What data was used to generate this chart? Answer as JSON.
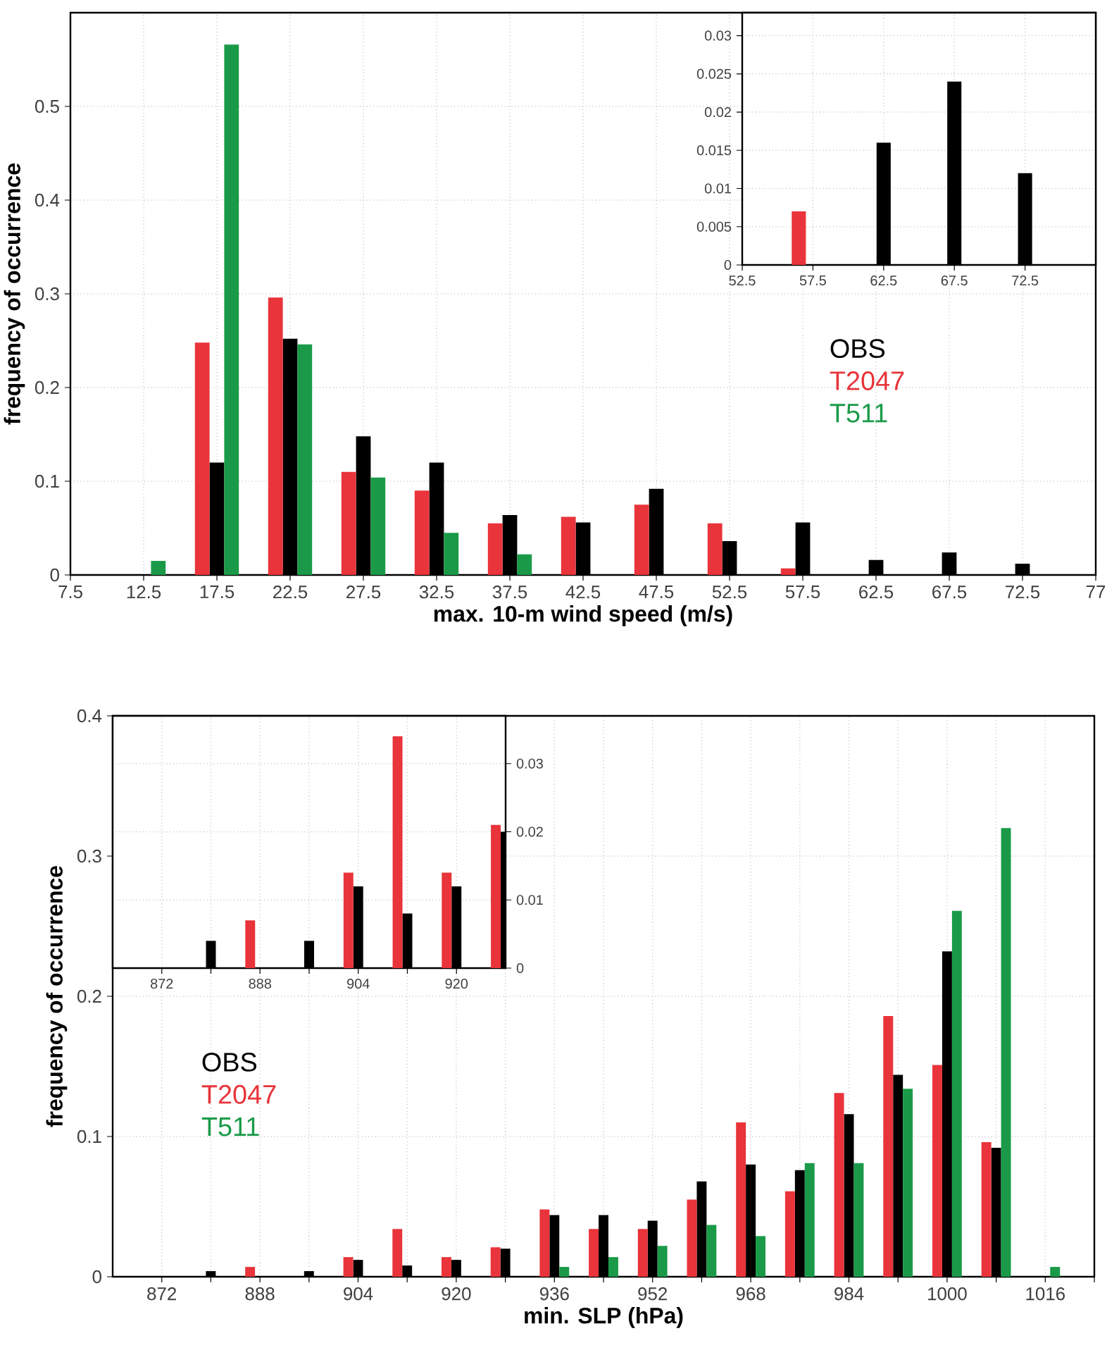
{
  "chart_data": [
    {
      "type": "bar",
      "xlabel": "max. 10-m wind speed (m/s)",
      "ylabel": "frequency of occurrence",
      "x": [
        12.5,
        17.5,
        22.5,
        27.5,
        32.5,
        37.5,
        42.5,
        47.5,
        52.5,
        57.5,
        62.5,
        67.5,
        72.5
      ],
      "series": [
        {
          "name": "OBS",
          "color": "#000000",
          "values": [
            0,
            0.12,
            0.252,
            0.148,
            0.12,
            0.064,
            0.056,
            0.092,
            0.036,
            0.056,
            0.016,
            0.024,
            0.012
          ]
        },
        {
          "name": "T2047",
          "color": "#e8343a",
          "values": [
            0,
            0.248,
            0.296,
            0.11,
            0.09,
            0.055,
            0.062,
            0.075,
            0.055,
            0.007,
            0,
            0,
            0
          ]
        },
        {
          "name": "T511",
          "color": "#1a9a48",
          "values": [
            0.015,
            0.566,
            0.246,
            0.104,
            0.045,
            0.022,
            0,
            0,
            0,
            0,
            0,
            0,
            0
          ]
        }
      ],
      "xlim": [
        7.5,
        77.5
      ],
      "ylim": [
        0,
        0.6
      ],
      "xticks": [
        7.5,
        12.5,
        17.5,
        22.5,
        27.5,
        32.5,
        37.5,
        42.5,
        47.5,
        52.5,
        57.5,
        62.5,
        67.5,
        72.5,
        {
          "value": 77.5,
          "label": "77"
        }
      ],
      "yticks": [
        0,
        0.1,
        0.2,
        0.3,
        0.4,
        0.5
      ],
      "grid": true,
      "legend": "right"
    },
    {
      "type": "bar",
      "x": [
        57.5,
        62.5,
        67.5,
        72.5
      ],
      "series": [
        {
          "color": "#000000",
          "values": [
            null,
            0.016,
            0.024,
            0.012
          ]
        },
        {
          "color": "#e8343a",
          "values": [
            0.007,
            null,
            null,
            null
          ]
        }
      ],
      "xlim": [
        52.5,
        77.5
      ],
      "ylim": [
        0,
        0.033
      ],
      "xticks": [
        52.5,
        57.5,
        62.5,
        67.5,
        72.5
      ],
      "yticks": [
        0,
        0.005,
        0.01,
        0.015,
        0.02,
        0.025,
        0.03
      ],
      "grid": true
    },
    {
      "type": "bar",
      "xlabel": "min. SLP (hPa)",
      "ylabel": "frequency of occurrence",
      "x": [
        880,
        888,
        896,
        904,
        912,
        920,
        928,
        936,
        944,
        952,
        960,
        968,
        976,
        984,
        992,
        1000,
        1008,
        1016
      ],
      "series": [
        {
          "name": "OBS",
          "color": "#000000",
          "values": [
            0.004,
            0,
            0.004,
            0.012,
            0.008,
            0.012,
            0.02,
            0.044,
            0.044,
            0.04,
            0.068,
            0.08,
            0.076,
            0.116,
            0.144,
            0.232,
            0.092,
            0
          ]
        },
        {
          "name": "T2047",
          "color": "#e8343a",
          "values": [
            0,
            0.007,
            0,
            0.014,
            0.034,
            0.014,
            0.021,
            0.048,
            0.034,
            0.034,
            0.055,
            0.11,
            0.061,
            0.131,
            0.186,
            0.151,
            0.096,
            0
          ]
        },
        {
          "name": "T511",
          "color": "#1a9a48",
          "values": [
            0,
            0,
            0,
            0,
            0,
            0,
            0,
            0.007,
            0.014,
            0.022,
            0.037,
            0.029,
            0.081,
            0.081,
            0.134,
            0.261,
            0.32,
            0.007
          ]
        }
      ],
      "xlim": [
        864,
        1024
      ],
      "ylim": [
        0,
        0.4
      ],
      "xticks": [
        872,
        {
          "value": 880,
          "label": null
        },
        888,
        {
          "value": 896,
          "label": null
        },
        904,
        {
          "value": 912,
          "label": null
        },
        920,
        {
          "value": 928,
          "label": null
        },
        936,
        {
          "value": 944,
          "label": null
        },
        952,
        {
          "value": 960,
          "label": null
        },
        968,
        {
          "value": 976,
          "label": null
        },
        984,
        {
          "value": 992,
          "label": null
        },
        1000,
        {
          "value": 1008,
          "label": null
        },
        1016,
        {
          "value": 1024,
          "label": null
        }
      ],
      "yticks": [
        0,
        0.1,
        0.2,
        0.3,
        0.4
      ],
      "grid": true,
      "legend": "left"
    },
    {
      "type": "bar",
      "x": [
        880,
        888,
        896,
        904,
        912,
        920,
        928
      ],
      "series": [
        {
          "color": "#000000",
          "values": [
            0.004,
            0,
            0.004,
            0.012,
            0.008,
            0.012,
            0.02
          ]
        },
        {
          "color": "#e8343a",
          "values": [
            0,
            0.007,
            0,
            0.014,
            0.034,
            0.014,
            0.021
          ]
        }
      ],
      "xlim": [
        864,
        928
      ],
      "ylim": [
        0,
        0.037
      ],
      "xticks": [
        872,
        {
          "value": 880,
          "label": null
        },
        888,
        {
          "value": 896,
          "label": null
        },
        904,
        {
          "value": 912,
          "label": null
        },
        920
      ],
      "yticks": [
        0,
        0.01,
        0.02,
        0.03
      ],
      "grid": true
    }
  ]
}
